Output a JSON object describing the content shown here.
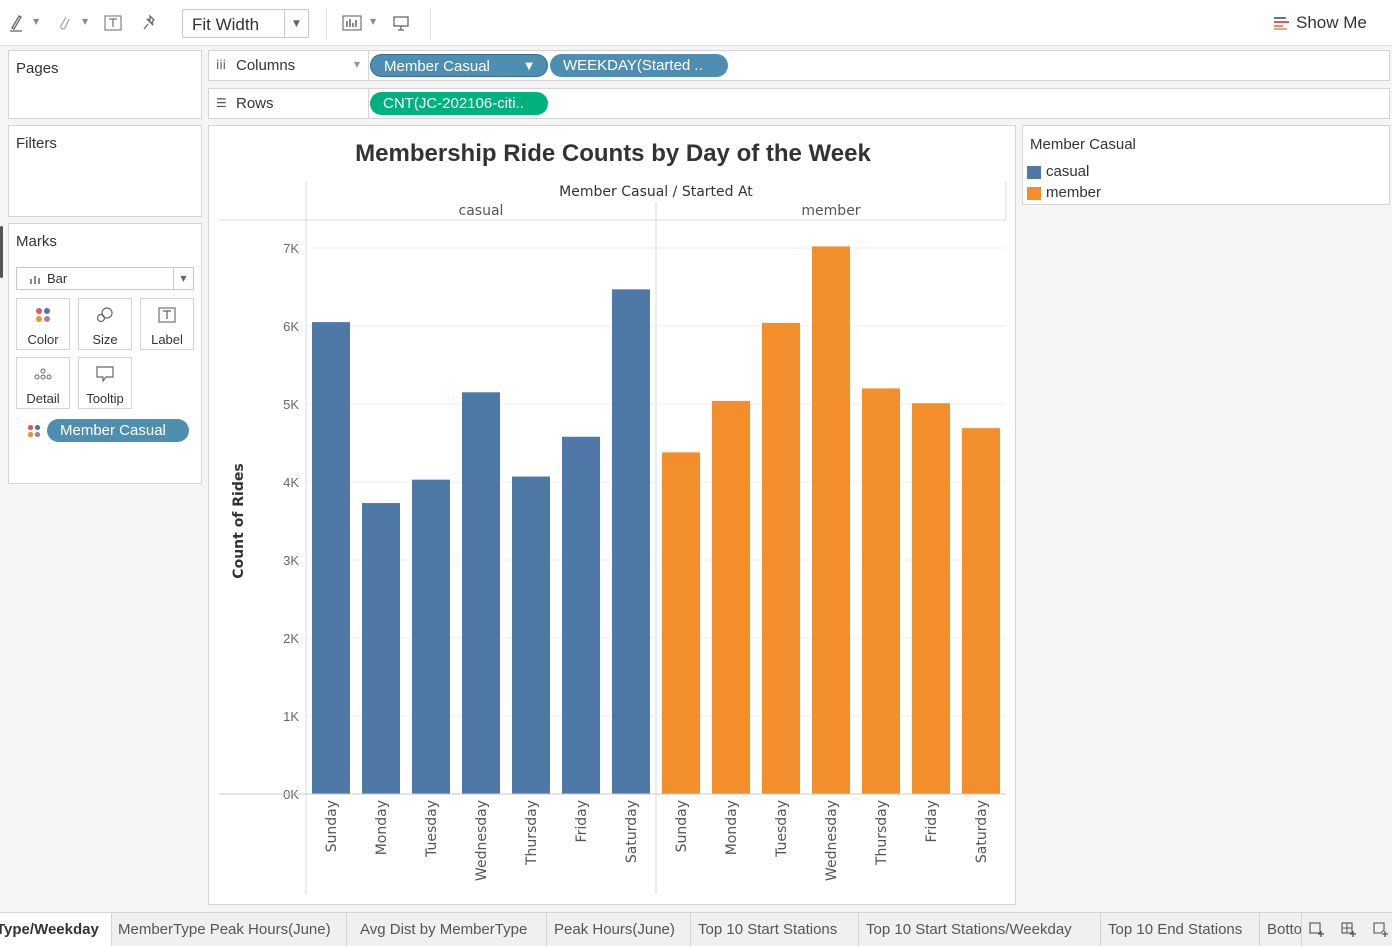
{
  "toolbar": {
    "fit_value": "Fit Width",
    "show_me_label": "Show Me",
    "icons": [
      "highlight-icon",
      "annotate-icon",
      "text-tool-icon",
      "pin-icon",
      "bar-chart-icon",
      "presentation-icon"
    ]
  },
  "shelves": {
    "pages_label": "Pages",
    "filters_label": "Filters",
    "marks_label": "Marks",
    "columns_label": "Columns",
    "rows_label": "Rows",
    "columns_pills": [
      "Member Casual",
      "WEEKDAY(Started .."
    ],
    "rows_pills": [
      "CNT(JC-202106-citi.."
    ]
  },
  "marks": {
    "type": "Bar",
    "buttons": [
      "Color",
      "Size",
      "Label",
      "Detail",
      "Tooltip"
    ],
    "color_pill": "Member Casual"
  },
  "legend": {
    "title": "Member Casual",
    "items": [
      {
        "label": "casual",
        "color": "#4e79a7"
      },
      {
        "label": "member",
        "color": "#f28e2b"
      }
    ]
  },
  "chart_data": {
    "type": "bar",
    "title": "Membership Ride Counts by Day of the Week",
    "column_header": "Member Casual",
    "column_header_sep": "/",
    "column_header_2": "Started At",
    "ylabel": "Count of Rides",
    "ylim": [
      0,
      7000
    ],
    "y_ticks": [
      "0K",
      "1K",
      "2K",
      "3K",
      "4K",
      "5K",
      "6K",
      "7K"
    ],
    "grid": true,
    "categories": [
      "Sunday",
      "Monday",
      "Tuesday",
      "Wednesday",
      "Thursday",
      "Friday",
      "Saturday"
    ],
    "series": [
      {
        "name": "casual",
        "color": "#4e79a7",
        "values": [
          6050,
          3730,
          4030,
          5150,
          4070,
          4580,
          6470
        ]
      },
      {
        "name": "member",
        "color": "#f28e2b",
        "values": [
          4380,
          5040,
          6040,
          7020,
          5200,
          5010,
          4690
        ]
      }
    ]
  },
  "tabs": {
    "items": [
      {
        "label": "Type/Weekday",
        "active": true
      },
      {
        "label": "MemberType Peak Hours(June)",
        "active": false
      },
      {
        "label": "Avg Dist by MemberType",
        "active": false
      },
      {
        "label": "Peak Hours(June)",
        "active": false
      },
      {
        "label": "Top 10 Start Stations",
        "active": false
      },
      {
        "label": "Top 10 Start Stations/Weekday",
        "active": false
      },
      {
        "label": "Top 10 End Stations",
        "active": false
      },
      {
        "label": "Bottom",
        "active": false
      }
    ],
    "icons": [
      "new-worksheet-icon",
      "new-dashboard-icon",
      "new-story-icon"
    ]
  }
}
